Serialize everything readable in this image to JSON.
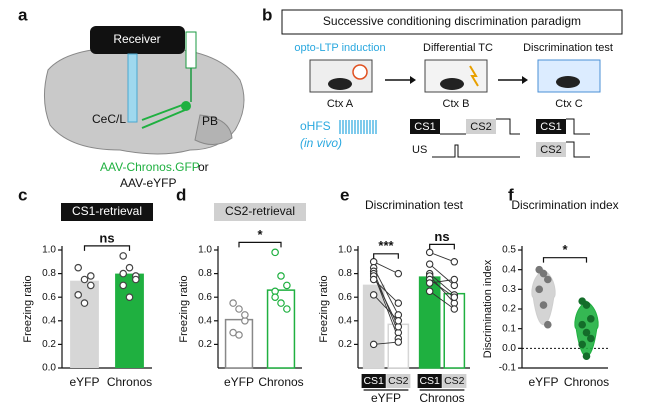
{
  "panel_labels": [
    "a",
    "b",
    "c",
    "d",
    "e",
    "f"
  ],
  "schematic": {
    "receiver": "Receiver",
    "region1": "CeC/L",
    "region2": "PB",
    "virus1": "AAV-Chronos.GFP",
    "virus_or": "or",
    "virus2": "AAV-eYFP"
  },
  "paradigm": {
    "title": "Successive conditioning discrimination paradigm",
    "stages": [
      "opto-LTP induction",
      "Differential TC",
      "Discrimination test"
    ],
    "contexts": [
      "Ctx A",
      "Ctx B",
      "Ctx C"
    ],
    "stim": "oHFS",
    "stim_note": "(in vivo)",
    "training_cues": [
      "CS1",
      "CS2"
    ],
    "us": "US",
    "test_cues": [
      "CS1",
      "CS2"
    ]
  },
  "chart_data": [
    {
      "type": "bar",
      "title": "CS1-retrieval",
      "title_style": "box",
      "title_fill": "#111111",
      "title_color": "#ffffff",
      "ylabel": "Freezing ratio",
      "categories": [
        "eYFP",
        "Chronos"
      ],
      "values": [
        0.74,
        0.8
      ],
      "colors": [
        "#d6d6d6",
        "#1fb040"
      ],
      "bar_style": "filled",
      "points": [
        [
          0.85,
          0.75,
          0.78,
          0.62,
          0.55,
          0.7
        ],
        [
          0.95,
          0.85,
          0.78,
          0.7,
          0.6,
          0.75,
          0.8
        ]
      ],
      "annotations": [
        {
          "text": "ns"
        }
      ],
      "ylim": [
        0,
        1.0
      ],
      "yticks": [
        {
          "value": 0,
          "label": "0.0"
        },
        0.2,
        0.4,
        0.6,
        0.8,
        {
          "value": 1.0,
          "label": "1.0"
        }
      ]
    },
    {
      "type": "bar",
      "title": "CS2-retrieval",
      "title_style": "box",
      "title_fill": "#d0d0d0",
      "title_color": "#111111",
      "ylabel": "Freezing ratio",
      "categories": [
        "eYFP",
        "Chronos"
      ],
      "values": [
        0.41,
        0.66
      ],
      "colors": [
        "#888888",
        "#1fb040"
      ],
      "bar_style": "outline",
      "points": [
        [
          0.55,
          0.5,
          0.4,
          0.3,
          0.28,
          0.45
        ],
        [
          0.98,
          0.78,
          0.7,
          0.65,
          0.55,
          0.5,
          0.6
        ]
      ],
      "annotations": [
        {
          "text": "*"
        }
      ],
      "ylim": [
        0,
        1.0
      ],
      "yticks": [
        0.2,
        0.4,
        0.6,
        0.8,
        {
          "value": 1.0,
          "label": "1.0"
        }
      ]
    },
    {
      "type": "grouped_bar",
      "title": "Discrimination test",
      "title_style": "plain",
      "ylabel": "Freezing ratio",
      "categories": [
        "CS1",
        "CS2"
      ],
      "category_fills": [
        "#111111",
        "#d0d0d0"
      ],
      "category_colors": [
        "#ffffff",
        "#111111"
      ],
      "series": [
        {
          "name": "eYFP",
          "color": "#d6d6d6",
          "values": [
            0.7,
            0.37
          ],
          "points": [
            [
              0.9,
              0.85,
              0.82,
              0.8,
              0.78,
              0.75,
              0.62,
              0.2
            ],
            [
              0.8,
              0.45,
              0.3,
              0.25,
              0.35,
              0.55,
              0.4,
              0.22
            ]
          ]
        },
        {
          "name": "Chronos",
          "color": "#1fb040",
          "values": [
            0.77,
            0.63
          ],
          "points": [
            [
              0.98,
              0.88,
              0.8,
              0.78,
              0.75,
              0.72,
              0.65
            ],
            [
              0.9,
              0.7,
              0.62,
              0.55,
              0.6,
              0.75,
              0.5
            ]
          ]
        }
      ],
      "annotations": [
        {
          "text": "***"
        },
        {
          "text": "ns"
        }
      ],
      "ylim": [
        0,
        1.0
      ],
      "yticks": [
        0.2,
        0.4,
        0.6,
        0.8,
        {
          "value": 1.0,
          "label": "1.0"
        }
      ]
    },
    {
      "type": "violin",
      "title": "Discrimination index",
      "title_style": "plain",
      "ylabel": "Discrimination index",
      "categories": [
        "eYFP",
        "Chronos"
      ],
      "colors": [
        "#cfcfcf",
        "#1fb040"
      ],
      "points": [
        [
          0.4,
          0.38,
          0.35,
          0.3,
          0.22,
          0.12
        ],
        [
          0.24,
          0.22,
          0.15,
          0.12,
          0.08,
          0.05,
          0.02,
          -0.04
        ]
      ],
      "annotations": [
        {
          "text": "*"
        }
      ],
      "zero_line": true,
      "ylim": [
        -0.1,
        0.5
      ],
      "yticks": [
        -0.1,
        {
          "value": 0,
          "label": "0.0"
        },
        0.1,
        0.2,
        0.3,
        0.4,
        0.5
      ]
    }
  ]
}
